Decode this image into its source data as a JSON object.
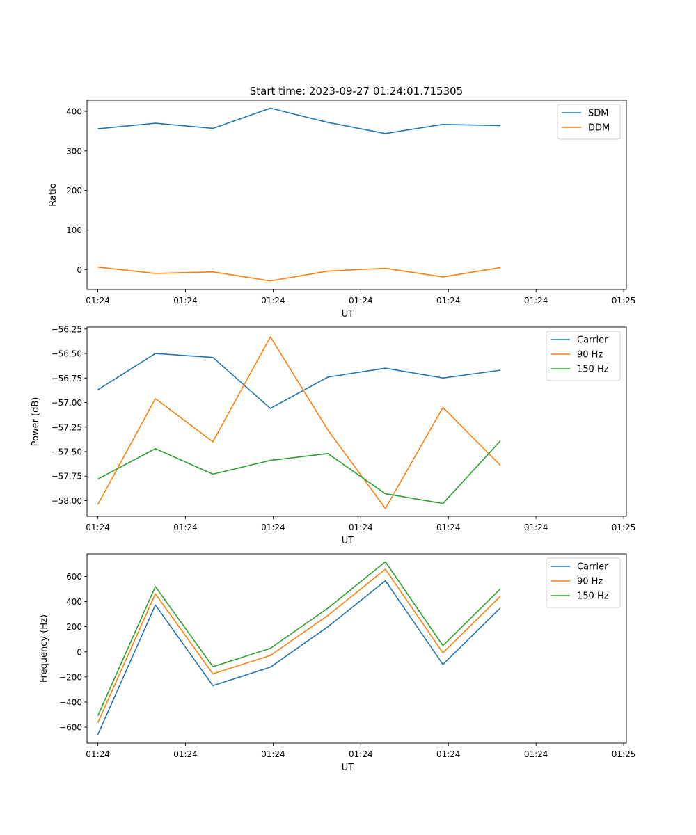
{
  "figure_title": "Start time: 2023-09-27 01:24:01.715305",
  "colors": {
    "blue": "#1f77b4",
    "orange": "#ff7f0e",
    "green": "#2ca02c"
  },
  "chart_data": [
    {
      "type": "line",
      "title": "Start time: 2023-09-27 01:24:01.715305",
      "xlabel": "UT",
      "ylabel": "Ratio",
      "x": [
        1,
        2,
        3,
        4,
        5,
        6,
        7,
        8
      ],
      "xlim": [
        0.8112,
        10.1905
      ],
      "x_tick_values": [
        1,
        2.5238,
        4.0476,
        5.5714,
        7.0952,
        8.619,
        10.1429
      ],
      "x_tick_labels": [
        "01:24",
        "01:24",
        "01:24",
        "01:24",
        "01:24",
        "01:24",
        "01:25"
      ],
      "ylim": [
        -50.6,
        428.2
      ],
      "y_ticks": [
        0,
        100,
        200,
        300,
        400
      ],
      "y_tick_labels": [
        "0",
        "100",
        "200",
        "300",
        "400"
      ],
      "legend_position": "top-right",
      "series": [
        {
          "name": "SDM",
          "color": "#1f77b4",
          "values": [
            356,
            370,
            357,
            408,
            372,
            344,
            367,
            364
          ]
        },
        {
          "name": "DDM",
          "color": "#ff7f0e",
          "values": [
            6,
            -10,
            -6,
            -29,
            -4,
            3,
            -19,
            5
          ]
        }
      ]
    },
    {
      "type": "line",
      "title": "",
      "xlabel": "UT",
      "ylabel": "Power (dB)",
      "x": [
        1,
        2,
        3,
        4,
        5,
        6,
        7,
        8
      ],
      "xlim": [
        0.8112,
        10.1905
      ],
      "x_tick_values": [
        1,
        2.5238,
        4.0476,
        5.5714,
        7.0952,
        8.619,
        10.1429
      ],
      "x_tick_labels": [
        "01:24",
        "01:24",
        "01:24",
        "01:24",
        "01:24",
        "01:24",
        "01:25"
      ],
      "ylim": [
        -58.16,
        -56.23
      ],
      "y_ticks": [
        -58.0,
        -57.75,
        -57.5,
        -57.25,
        -57.0,
        -56.75,
        -56.5,
        -56.25
      ],
      "y_tick_labels": [
        "−58.00",
        "−57.75",
        "−57.50",
        "−57.25",
        "−57.00",
        "−56.75",
        "−56.50",
        "−56.25"
      ],
      "legend_position": "top-right",
      "series": [
        {
          "name": "Carrier",
          "color": "#1f77b4",
          "values": [
            -56.87,
            -56.5,
            -56.54,
            -57.06,
            -56.74,
            -56.65,
            -56.75,
            -56.67
          ]
        },
        {
          "name": "90 Hz",
          "color": "#ff7f0e",
          "values": [
            -58.04,
            -56.96,
            -57.4,
            -56.33,
            -57.28,
            -58.08,
            -57.05,
            -57.64
          ]
        },
        {
          "name": "150 Hz",
          "color": "#2ca02c",
          "values": [
            -57.78,
            -57.47,
            -57.73,
            -57.59,
            -57.52,
            -57.93,
            -58.03,
            -57.39
          ]
        }
      ]
    },
    {
      "type": "line",
      "title": "",
      "xlabel": "UT",
      "ylabel": "Frequency (Hz)",
      "x": [
        1,
        2,
        3,
        4,
        5,
        6,
        7,
        8
      ],
      "xlim": [
        0.8112,
        10.1905
      ],
      "x_tick_values": [
        1,
        2.5238,
        4.0476,
        5.5714,
        7.0952,
        8.619,
        10.1429
      ],
      "x_tick_labels": [
        "01:24",
        "01:24",
        "01:24",
        "01:24",
        "01:24",
        "01:24",
        "01:25"
      ],
      "ylim": [
        -727,
        780
      ],
      "y_ticks": [
        -600,
        -400,
        -200,
        0,
        200,
        400,
        600
      ],
      "y_tick_labels": [
        "−600",
        "−400",
        "−200",
        "0",
        "200",
        "400",
        "600"
      ],
      "legend_position": "top-right",
      "series": [
        {
          "name": "Carrier",
          "color": "#1f77b4",
          "values": [
            -658,
            373,
            -269,
            -122,
            200,
            566,
            -100,
            350
          ]
        },
        {
          "name": "90 Hz",
          "color": "#ff7f0e",
          "values": [
            -564,
            462,
            -175,
            -29,
            290,
            658,
            -8,
            443
          ]
        },
        {
          "name": "150 Hz",
          "color": "#2ca02c",
          "values": [
            -509,
            520,
            -118,
            28,
            348,
            717,
            50,
            502
          ]
        }
      ]
    }
  ]
}
